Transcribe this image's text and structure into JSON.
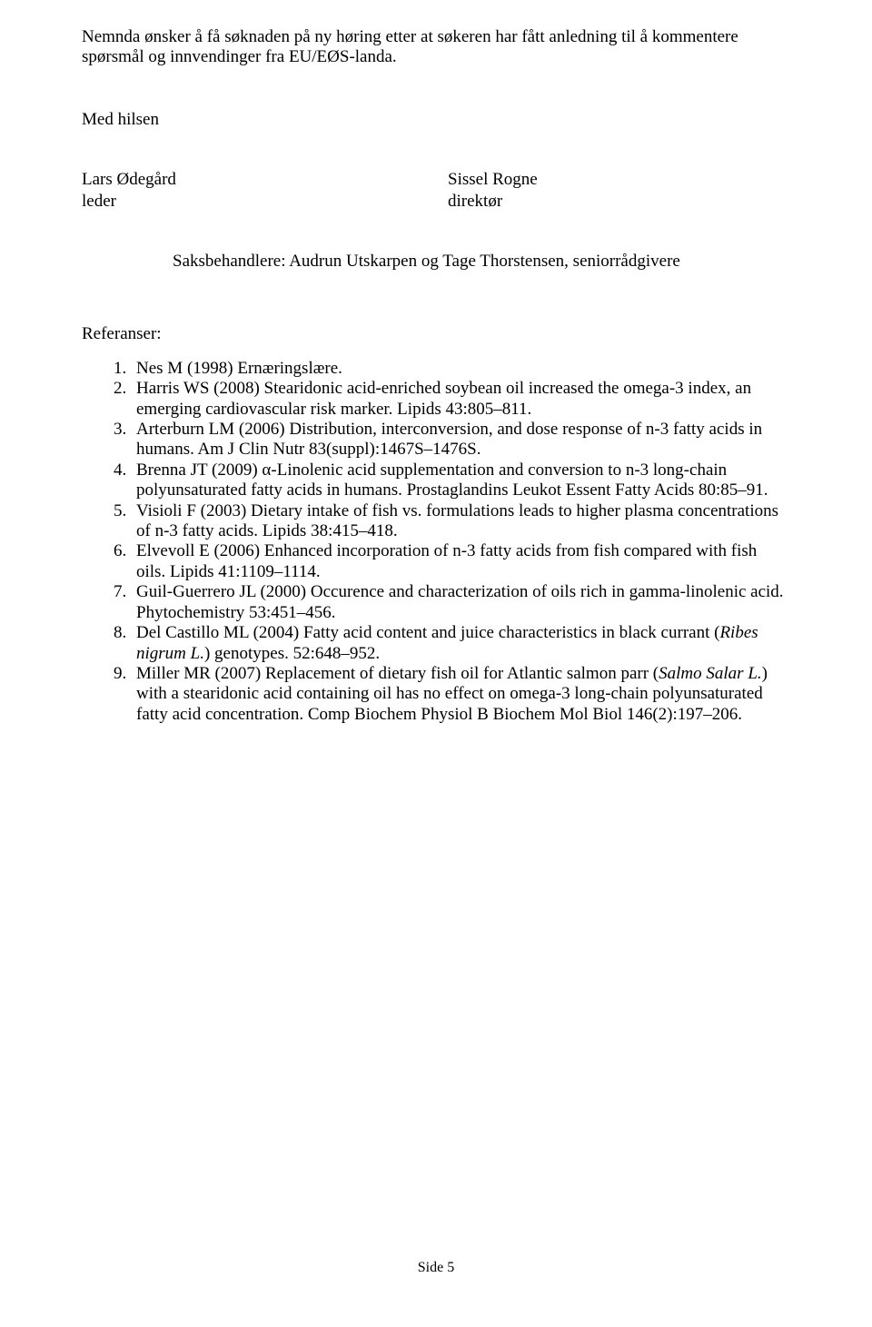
{
  "intro": "Nemnda ønsker å få søknaden på ny høring etter at søkeren har fått anledning til å kommentere spørsmål og innvendinger fra EU/EØS-landa.",
  "closing": "Med hilsen",
  "sig_left_name": "Lars Ødegård",
  "sig_left_title": "leder",
  "sig_right_name": "Sissel Rogne",
  "sig_right_title": "direktør",
  "handlers": "Saksbehandlere: Audrun Utskarpen og Tage Thorstensen, seniorrådgivere",
  "refs_label": "Referanser:",
  "refs": [
    "Nes M (1998) Ernæringslære.",
    "Harris WS (2008) Stearidonic acid-enriched soybean oil increased the omega-3 index, an emerging cardiovascular risk marker. Lipids 43:805–811.",
    "Arterburn LM (2006) Distribution, interconversion, and dose response of n-3 fatty acids in humans. Am J Clin Nutr 83(suppl):1467S–1476S.",
    "Brenna JT (2009) α-Linolenic acid supplementation and conversion to n-3 long-chain polyunsaturated fatty acids in humans. Prostaglandins Leukot Essent Fatty Acids 80:85–91.",
    "Visioli F (2003) Dietary intake of fish vs. formulations leads to higher plasma concentrations of n-3 fatty acids. Lipids 38:415–418.",
    "Elvevoll E (2006) Enhanced incorporation of n-3 fatty acids from fish compared with fish oils. Lipids 41:1109–1114.",
    "Guil-Guerrero JL (2000) Occurence and characterization of oils rich in gamma-linolenic acid. Phytochemistry 53:451–456."
  ],
  "ref8_pre": "Del Castillo ML (2004) Fatty acid content and juice characteristics in black currant (",
  "ref8_italic": "Ribes nigrum L.",
  "ref8_post": ") genotypes. 52:648–952.",
  "ref9_pre": "Miller MR (2007) Replacement of dietary fish oil for Atlantic salmon parr (",
  "ref9_italic": "Salmo Salar L.",
  "ref9_post": ") with a stearidonic acid containing oil has no effect on omega-3 long-chain polyunsaturated fatty acid concentration. Comp Biochem Physiol B Biochem Mol Biol 146(2):197–206.",
  "footer": "Side 5"
}
